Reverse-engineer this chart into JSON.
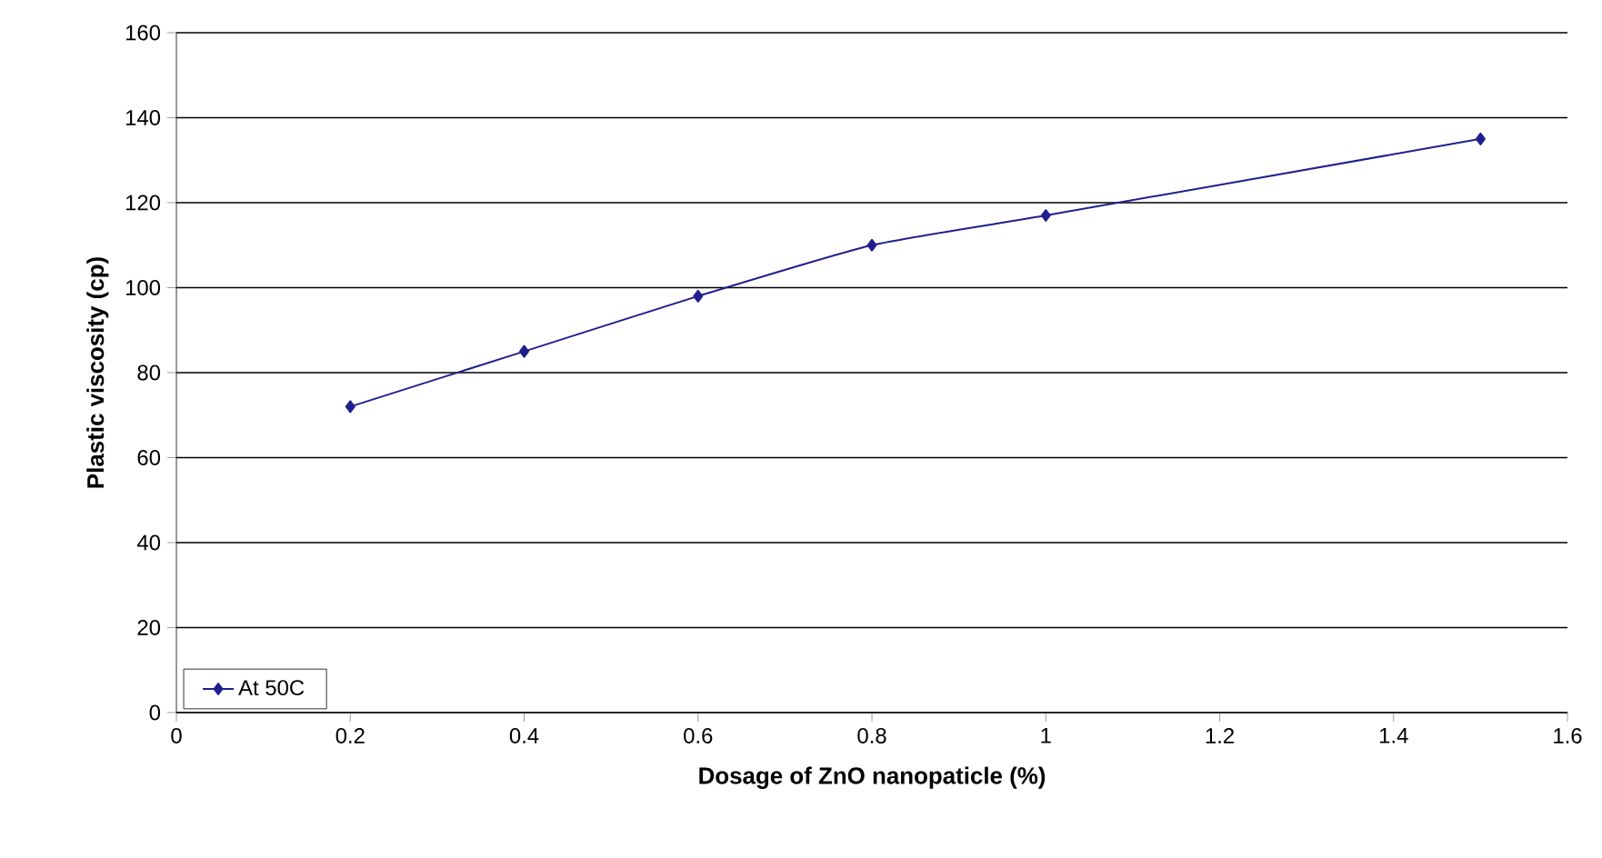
{
  "chart_data": {
    "type": "line",
    "xlabel": "Dosage of ZnO nanopaticle (%)",
    "ylabel": "Plastic viscosity (cp)",
    "x": [
      0.2,
      0.4,
      0.6,
      0.8,
      1.0,
      1.5
    ],
    "series": [
      {
        "name": "At 50C",
        "color": "#1f1f8f",
        "values": [
          72,
          85,
          98,
          110,
          117,
          135
        ]
      }
    ],
    "xlim": [
      0,
      1.6
    ],
    "xticks": [
      0,
      0.2,
      0.4,
      0.6,
      0.8,
      1,
      1.2,
      1.4,
      1.6
    ],
    "ylim": [
      0,
      160
    ],
    "yticks": [
      0,
      20,
      40,
      60,
      80,
      100,
      120,
      140,
      160
    ],
    "grid": "y",
    "legend": "bottom left",
    "marker": "diamond",
    "line_style": "solid"
  }
}
